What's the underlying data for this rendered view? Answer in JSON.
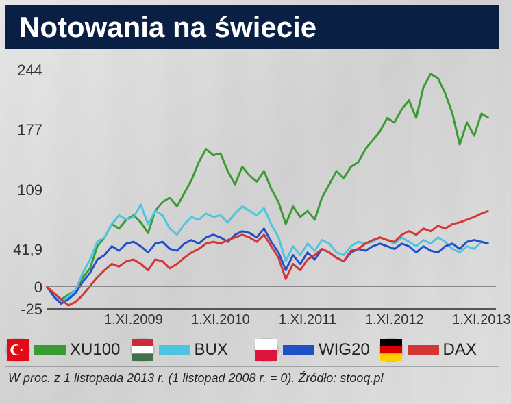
{
  "title": "Notowania na świecie",
  "footnote": "W proc. z 1 listopada 2013 r. (1 listopad 2008 r. = 0).  Źródło: stooq.pl",
  "chart": {
    "type": "line",
    "ylim": [
      -25,
      260
    ],
    "yticks": [
      -25,
      0,
      41.9,
      109,
      177,
      244
    ],
    "xlim": [
      0,
      62
    ],
    "xticks": [
      {
        "pos": 12,
        "label": "1.XI.2009"
      },
      {
        "pos": 24,
        "label": "1.XI.2010"
      },
      {
        "pos": 36,
        "label": "1.XI.2011"
      },
      {
        "pos": 48,
        "label": "1.XI.2012"
      },
      {
        "pos": 60,
        "label": "1.XI.2013"
      }
    ],
    "grid_color": "#888888",
    "series": [
      {
        "name": "XU100",
        "color": "#3a9b35",
        "flag": "tr",
        "width": 3,
        "data": [
          [
            0,
            0
          ],
          [
            1,
            -8
          ],
          [
            2,
            -15
          ],
          [
            3,
            -10
          ],
          [
            4,
            -5
          ],
          [
            5,
            10
          ],
          [
            6,
            20
          ],
          [
            7,
            45
          ],
          [
            8,
            55
          ],
          [
            9,
            70
          ],
          [
            10,
            65
          ],
          [
            11,
            75
          ],
          [
            12,
            80
          ],
          [
            13,
            72
          ],
          [
            14,
            60
          ],
          [
            15,
            85
          ],
          [
            16,
            95
          ],
          [
            17,
            100
          ],
          [
            18,
            90
          ],
          [
            19,
            105
          ],
          [
            20,
            120
          ],
          [
            21,
            140
          ],
          [
            22,
            155
          ],
          [
            23,
            148
          ],
          [
            24,
            150
          ],
          [
            25,
            130
          ],
          [
            26,
            115
          ],
          [
            27,
            135
          ],
          [
            28,
            125
          ],
          [
            29,
            118
          ],
          [
            30,
            130
          ],
          [
            31,
            110
          ],
          [
            32,
            95
          ],
          [
            33,
            70
          ],
          [
            34,
            90
          ],
          [
            35,
            78
          ],
          [
            36,
            85
          ],
          [
            37,
            75
          ],
          [
            38,
            100
          ],
          [
            39,
            115
          ],
          [
            40,
            130
          ],
          [
            41,
            122
          ],
          [
            42,
            135
          ],
          [
            43,
            140
          ],
          [
            44,
            155
          ],
          [
            45,
            165
          ],
          [
            46,
            175
          ],
          [
            47,
            190
          ],
          [
            48,
            185
          ],
          [
            49,
            200
          ],
          [
            50,
            210
          ],
          [
            51,
            190
          ],
          [
            52,
            225
          ],
          [
            53,
            240
          ],
          [
            54,
            235
          ],
          [
            55,
            218
          ],
          [
            56,
            195
          ],
          [
            57,
            160
          ],
          [
            58,
            185
          ],
          [
            59,
            170
          ],
          [
            60,
            195
          ],
          [
            61,
            190
          ]
        ]
      },
      {
        "name": "BUX",
        "color": "#4ec5e0",
        "flag": "hu",
        "width": 3,
        "data": [
          [
            0,
            0
          ],
          [
            1,
            -10
          ],
          [
            2,
            -18
          ],
          [
            3,
            -12
          ],
          [
            4,
            -5
          ],
          [
            5,
            15
          ],
          [
            6,
            30
          ],
          [
            7,
            50
          ],
          [
            8,
            55
          ],
          [
            9,
            70
          ],
          [
            10,
            80
          ],
          [
            11,
            75
          ],
          [
            12,
            78
          ],
          [
            13,
            92
          ],
          [
            14,
            70
          ],
          [
            15,
            85
          ],
          [
            16,
            80
          ],
          [
            17,
            65
          ],
          [
            18,
            58
          ],
          [
            19,
            70
          ],
          [
            20,
            78
          ],
          [
            21,
            75
          ],
          [
            22,
            82
          ],
          [
            23,
            78
          ],
          [
            24,
            80
          ],
          [
            25,
            72
          ],
          [
            26,
            82
          ],
          [
            27,
            90
          ],
          [
            28,
            85
          ],
          [
            29,
            80
          ],
          [
            30,
            88
          ],
          [
            31,
            70
          ],
          [
            32,
            55
          ],
          [
            33,
            28
          ],
          [
            34,
            45
          ],
          [
            35,
            35
          ],
          [
            36,
            48
          ],
          [
            37,
            40
          ],
          [
            38,
            52
          ],
          [
            39,
            48
          ],
          [
            40,
            38
          ],
          [
            41,
            35
          ],
          [
            42,
            45
          ],
          [
            43,
            50
          ],
          [
            44,
            48
          ],
          [
            45,
            50
          ],
          [
            46,
            55
          ],
          [
            47,
            52
          ],
          [
            48,
            48
          ],
          [
            49,
            55
          ],
          [
            50,
            50
          ],
          [
            51,
            45
          ],
          [
            52,
            52
          ],
          [
            53,
            48
          ],
          [
            54,
            55
          ],
          [
            55,
            50
          ],
          [
            56,
            42
          ],
          [
            57,
            38
          ],
          [
            58,
            45
          ],
          [
            59,
            42
          ],
          [
            60,
            50
          ],
          [
            61,
            48
          ]
        ]
      },
      {
        "name": "WIG20",
        "color": "#2050c8",
        "flag": "pl",
        "width": 3,
        "data": [
          [
            0,
            0
          ],
          [
            1,
            -12
          ],
          [
            2,
            -20
          ],
          [
            3,
            -15
          ],
          [
            4,
            -8
          ],
          [
            5,
            5
          ],
          [
            6,
            15
          ],
          [
            7,
            30
          ],
          [
            8,
            35
          ],
          [
            9,
            45
          ],
          [
            10,
            40
          ],
          [
            11,
            48
          ],
          [
            12,
            50
          ],
          [
            13,
            45
          ],
          [
            14,
            38
          ],
          [
            15,
            48
          ],
          [
            16,
            50
          ],
          [
            17,
            42
          ],
          [
            18,
            40
          ],
          [
            19,
            48
          ],
          [
            20,
            52
          ],
          [
            21,
            48
          ],
          [
            22,
            55
          ],
          [
            23,
            58
          ],
          [
            24,
            55
          ],
          [
            25,
            50
          ],
          [
            26,
            58
          ],
          [
            27,
            62
          ],
          [
            28,
            60
          ],
          [
            29,
            55
          ],
          [
            30,
            65
          ],
          [
            31,
            50
          ],
          [
            32,
            38
          ],
          [
            33,
            18
          ],
          [
            34,
            35
          ],
          [
            35,
            25
          ],
          [
            36,
            38
          ],
          [
            37,
            30
          ],
          [
            38,
            42
          ],
          [
            39,
            38
          ],
          [
            40,
            32
          ],
          [
            41,
            28
          ],
          [
            42,
            38
          ],
          [
            43,
            42
          ],
          [
            44,
            40
          ],
          [
            45,
            45
          ],
          [
            46,
            48
          ],
          [
            47,
            45
          ],
          [
            48,
            42
          ],
          [
            49,
            48
          ],
          [
            50,
            45
          ],
          [
            51,
            38
          ],
          [
            52,
            45
          ],
          [
            53,
            40
          ],
          [
            54,
            38
          ],
          [
            55,
            45
          ],
          [
            56,
            48
          ],
          [
            57,
            42
          ],
          [
            58,
            50
          ],
          [
            59,
            52
          ],
          [
            60,
            50
          ],
          [
            61,
            48
          ]
        ]
      },
      {
        "name": "DAX",
        "color": "#d43535",
        "flag": "de",
        "width": 3,
        "data": [
          [
            0,
            0
          ],
          [
            1,
            -8
          ],
          [
            2,
            -15
          ],
          [
            3,
            -22
          ],
          [
            4,
            -18
          ],
          [
            5,
            -10
          ],
          [
            6,
            0
          ],
          [
            7,
            10
          ],
          [
            8,
            18
          ],
          [
            9,
            25
          ],
          [
            10,
            22
          ],
          [
            11,
            28
          ],
          [
            12,
            30
          ],
          [
            13,
            25
          ],
          [
            14,
            18
          ],
          [
            15,
            30
          ],
          [
            16,
            28
          ],
          [
            17,
            20
          ],
          [
            18,
            25
          ],
          [
            19,
            32
          ],
          [
            20,
            38
          ],
          [
            21,
            42
          ],
          [
            22,
            48
          ],
          [
            23,
            50
          ],
          [
            24,
            48
          ],
          [
            25,
            52
          ],
          [
            26,
            55
          ],
          [
            27,
            58
          ],
          [
            28,
            55
          ],
          [
            29,
            50
          ],
          [
            30,
            58
          ],
          [
            31,
            45
          ],
          [
            32,
            32
          ],
          [
            33,
            8
          ],
          [
            34,
            25
          ],
          [
            35,
            18
          ],
          [
            36,
            30
          ],
          [
            37,
            35
          ],
          [
            38,
            42
          ],
          [
            39,
            38
          ],
          [
            40,
            32
          ],
          [
            41,
            28
          ],
          [
            42,
            40
          ],
          [
            43,
            42
          ],
          [
            44,
            48
          ],
          [
            45,
            52
          ],
          [
            46,
            55
          ],
          [
            47,
            52
          ],
          [
            48,
            50
          ],
          [
            49,
            58
          ],
          [
            50,
            62
          ],
          [
            51,
            58
          ],
          [
            52,
            65
          ],
          [
            53,
            62
          ],
          [
            54,
            68
          ],
          [
            55,
            65
          ],
          [
            56,
            70
          ],
          [
            57,
            72
          ],
          [
            58,
            75
          ],
          [
            59,
            78
          ],
          [
            60,
            82
          ],
          [
            61,
            85
          ]
        ]
      }
    ],
    "flags": {
      "tr": {
        "type": "tr",
        "bg": "#e30a17",
        "fg": "#ffffff"
      },
      "hu": {
        "type": "tri-h",
        "c1": "#cd2a3e",
        "c2": "#ffffff",
        "c3": "#436f4d"
      },
      "pl": {
        "type": "bi-h",
        "c1": "#ffffff",
        "c2": "#dc143c"
      },
      "de": {
        "type": "tri-h",
        "c1": "#000000",
        "c2": "#dd0000",
        "c3": "#ffce00"
      }
    }
  }
}
